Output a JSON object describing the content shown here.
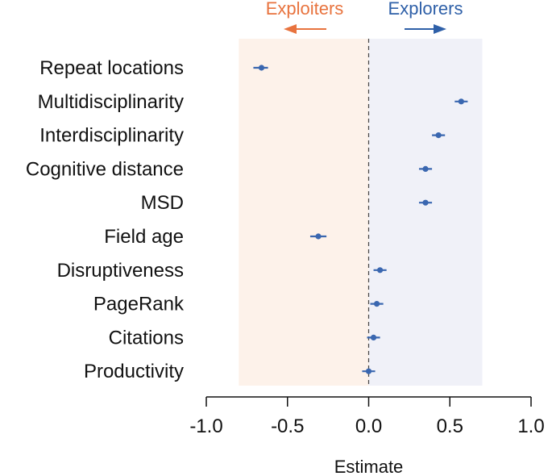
{
  "chart_data": {
    "type": "scatter",
    "subtype": "coefficient-plot",
    "categories": [
      "Repeat locations",
      "Multidisciplinarity",
      "Interdisciplinarity",
      "Cognitive distance",
      "MSD",
      "Field age",
      "Disruptiveness",
      "PageRank",
      "Citations",
      "Productivity"
    ],
    "estimates": [
      -0.66,
      0.57,
      0.43,
      0.35,
      0.35,
      -0.31,
      0.07,
      0.05,
      0.03,
      0.0
    ],
    "ci_low": [
      -0.71,
      0.53,
      0.39,
      0.31,
      0.31,
      -0.36,
      0.03,
      0.01,
      -0.01,
      -0.04
    ],
    "ci_high": [
      -0.62,
      0.61,
      0.47,
      0.39,
      0.39,
      -0.26,
      0.11,
      0.09,
      0.07,
      0.04
    ],
    "xlabel": "Estimate",
    "xlim": [
      -1.0,
      1.0
    ],
    "xticks": [
      -1.0,
      -0.5,
      0.0,
      0.5,
      1.0
    ],
    "xtick_labels": [
      "-1.0",
      "-0.5",
      "0.0",
      "0.5",
      "1.0"
    ],
    "reference_line": 0.0,
    "shaded_regions": [
      {
        "from": -0.8,
        "to": 0.0,
        "color": "#fdf2ea"
      },
      {
        "from": 0.0,
        "to": 0.7,
        "color": "#f0f1f8"
      }
    ],
    "direction_labels": {
      "left": {
        "text": "Exploiters",
        "color": "#e8733e"
      },
      "right": {
        "text": "Explorers",
        "color": "#2f60a8"
      }
    },
    "point_color": "#3a67b0",
    "grid": false,
    "legend": "none"
  }
}
